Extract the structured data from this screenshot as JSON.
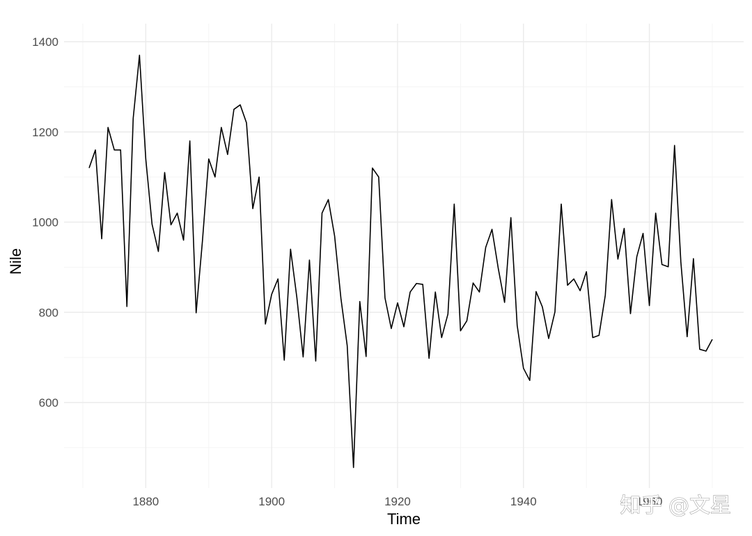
{
  "watermark": "知乎 @文星",
  "chart_data": {
    "type": "line",
    "title": "",
    "xlabel": "Time",
    "ylabel": "Nile",
    "xlim": [
      1871,
      1970
    ],
    "ylim": [
      456,
      1370
    ],
    "x_ticks": [
      1880,
      1900,
      1920,
      1940,
      1960
    ],
    "y_ticks": [
      600,
      800,
      1000,
      1200,
      1400
    ],
    "grid": true,
    "line_color": "#000000",
    "grid_major_color": "#ebebeb",
    "grid_minor_color": "#f4f4f4",
    "x": [
      1871,
      1872,
      1873,
      1874,
      1875,
      1876,
      1877,
      1878,
      1879,
      1880,
      1881,
      1882,
      1883,
      1884,
      1885,
      1886,
      1887,
      1888,
      1889,
      1890,
      1891,
      1892,
      1893,
      1894,
      1895,
      1896,
      1897,
      1898,
      1899,
      1900,
      1901,
      1902,
      1903,
      1904,
      1905,
      1906,
      1907,
      1908,
      1909,
      1910,
      1911,
      1912,
      1913,
      1914,
      1915,
      1916,
      1917,
      1918,
      1919,
      1920,
      1921,
      1922,
      1923,
      1924,
      1925,
      1926,
      1927,
      1928,
      1929,
      1930,
      1931,
      1932,
      1933,
      1934,
      1935,
      1936,
      1937,
      1938,
      1939,
      1940,
      1941,
      1942,
      1943,
      1944,
      1945,
      1946,
      1947,
      1948,
      1949,
      1950,
      1951,
      1952,
      1953,
      1954,
      1955,
      1956,
      1957,
      1958,
      1959,
      1960,
      1961,
      1962,
      1963,
      1964,
      1965,
      1966,
      1967,
      1968,
      1969,
      1970
    ],
    "y": [
      1120,
      1160,
      963,
      1210,
      1160,
      1160,
      813,
      1230,
      1370,
      1140,
      995,
      935,
      1110,
      994,
      1020,
      960,
      1180,
      799,
      958,
      1140,
      1100,
      1210,
      1150,
      1250,
      1260,
      1220,
      1030,
      1100,
      774,
      840,
      874,
      694,
      940,
      833,
      701,
      916,
      692,
      1020,
      1050,
      969,
      831,
      726,
      456,
      824,
      702,
      1120,
      1100,
      832,
      764,
      821,
      768,
      845,
      864,
      862,
      698,
      845,
      744,
      796,
      1040,
      759,
      781,
      865,
      845,
      944,
      984,
      897,
      822,
      1010,
      771,
      676,
      649,
      846,
      812,
      742,
      801,
      1040,
      860,
      874,
      848,
      890,
      744,
      749,
      838,
      1050,
      918,
      986,
      797,
      923,
      975,
      815,
      1020,
      906,
      901,
      1170,
      912,
      746,
      919,
      718,
      714,
      740
    ]
  }
}
